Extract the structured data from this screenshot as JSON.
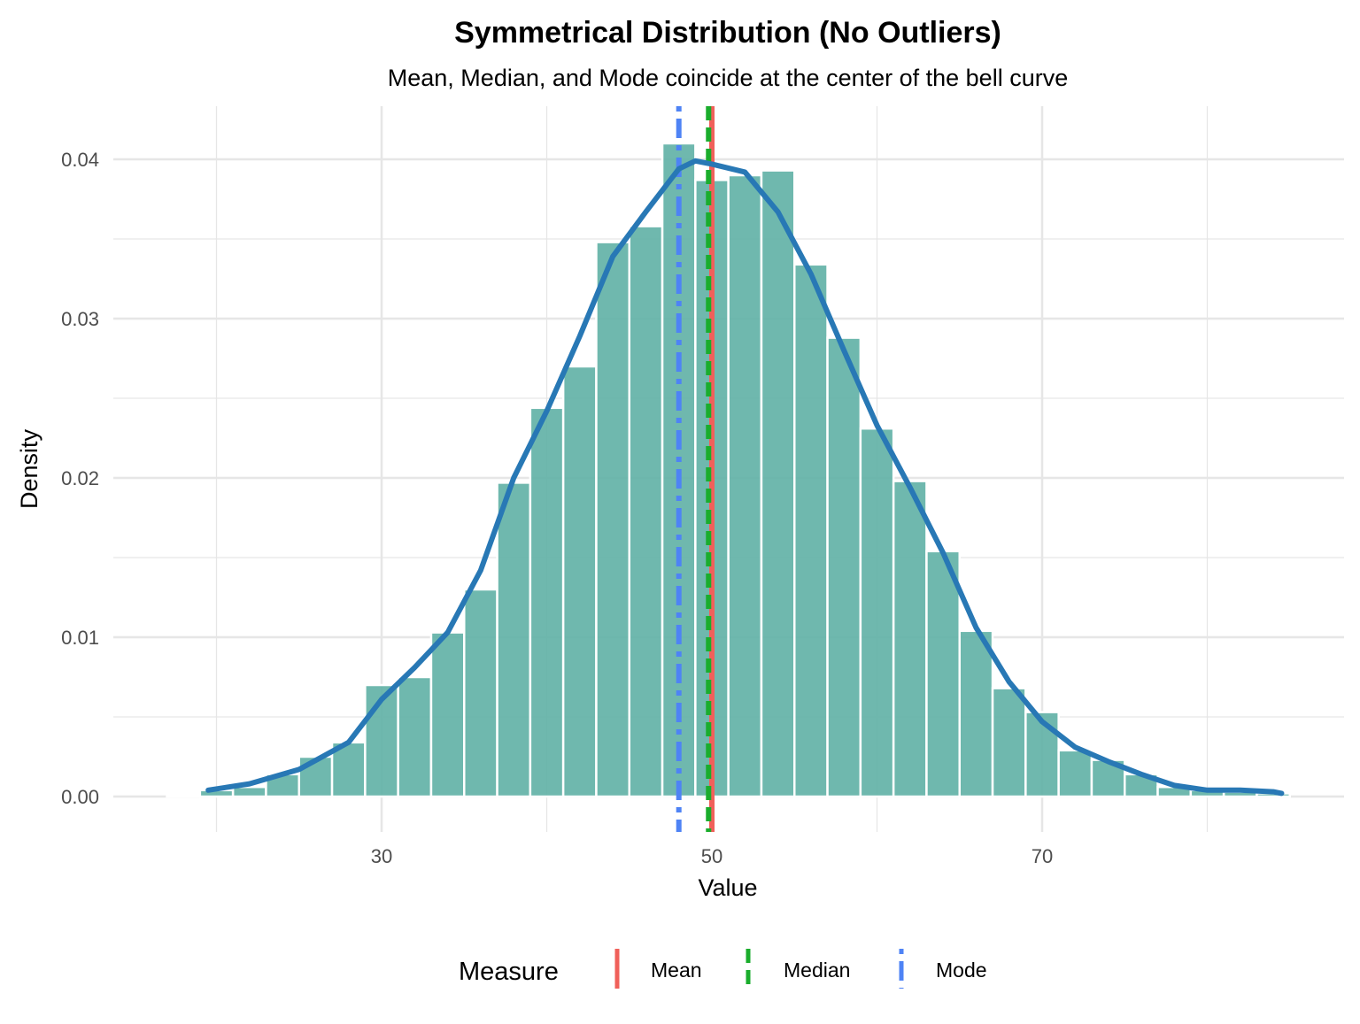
{
  "chart_data": {
    "type": "bar",
    "title": "Symmetrical Distribution (No Outliers)",
    "subtitle": "Mean, Median, and Mode coincide at the center of the bell curve",
    "xlabel": "Value",
    "ylabel": "Density",
    "xlim": [
      12,
      88
    ],
    "ylim": [
      -0.002,
      0.0435
    ],
    "xticks": [
      30,
      50,
      70
    ],
    "xtick_labels": [
      "30",
      "50",
      "70"
    ],
    "yticks": [
      0,
      0.01,
      0.02,
      0.03,
      0.04
    ],
    "ytick_labels": [
      "0.00",
      "0.01",
      "0.02",
      "0.03",
      "0.04"
    ],
    "grid": true,
    "bin_width": 2,
    "bar_color": "#5fb0a5",
    "histogram": {
      "centers": [
        18,
        20,
        22,
        24,
        26,
        28,
        30,
        32,
        34,
        36,
        38,
        40,
        42,
        44,
        46,
        48,
        50,
        52,
        54,
        56,
        58,
        60,
        62,
        64,
        66,
        68,
        70,
        72,
        74,
        76,
        78,
        80,
        82,
        84
      ],
      "values": [
        0.0001,
        0.0004,
        0.0006,
        0.0014,
        0.0025,
        0.0034,
        0.007,
        0.0075,
        0.0103,
        0.013,
        0.0197,
        0.0244,
        0.027,
        0.0348,
        0.0358,
        0.041,
        0.0387,
        0.039,
        0.0393,
        0.0334,
        0.0288,
        0.0231,
        0.0198,
        0.0154,
        0.0104,
        0.0068,
        0.0053,
        0.0029,
        0.0023,
        0.0014,
        0.0006,
        0.0004,
        0.0003,
        0.0002
      ]
    },
    "density_curve": {
      "color": "#2878b5",
      "x": [
        19.5,
        22,
        25,
        28,
        30,
        32,
        34,
        36,
        38,
        40,
        42,
        44,
        46,
        48,
        49,
        50,
        52,
        54,
        56,
        58,
        60,
        62,
        64,
        66,
        68,
        70,
        72,
        74,
        76,
        78,
        80,
        82,
        84,
        84.5
      ],
      "y": [
        0.0004,
        0.0008,
        0.0017,
        0.0034,
        0.0061,
        0.0081,
        0.0103,
        0.0142,
        0.02,
        0.0242,
        0.0289,
        0.0339,
        0.0367,
        0.0394,
        0.0399,
        0.0397,
        0.0392,
        0.0367,
        0.0328,
        0.028,
        0.0233,
        0.0194,
        0.0153,
        0.0106,
        0.0072,
        0.0047,
        0.0031,
        0.0022,
        0.0014,
        0.0007,
        0.0004,
        0.0004,
        0.0003,
        0.0002
      ]
    },
    "reference_lines": [
      {
        "name": "Mean",
        "x": 50.0,
        "color": "#f0605a",
        "dash": "solid"
      },
      {
        "name": "Median",
        "x": 49.8,
        "color": "#1aad2c",
        "dash": "dashed"
      },
      {
        "name": "Mode",
        "x": 48.0,
        "color": "#4e83f5",
        "dash": "dotdash"
      }
    ],
    "legend": {
      "title": "Measure",
      "position": "bottom"
    }
  }
}
